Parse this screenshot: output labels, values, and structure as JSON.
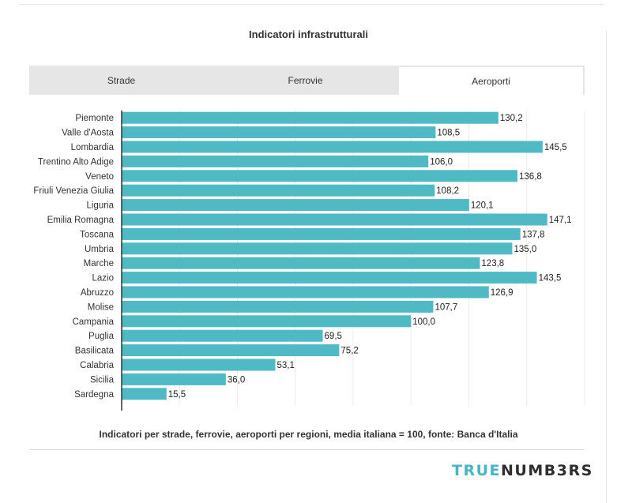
{
  "title": "Indicatori infrastrutturali",
  "tabs": [
    {
      "label": "Strade",
      "active": false
    },
    {
      "label": "Ferrovie",
      "active": false
    },
    {
      "label": "Aeroporti",
      "active": true
    }
  ],
  "chart_data": {
    "type": "bar",
    "orientation": "horizontal",
    "title": "Indicatori infrastrutturali",
    "categories": [
      "Piemonte",
      "Valle d'Aosta",
      "Lombardia",
      "Trentino Alto Adige",
      "Veneto",
      "Friuli Venezia Giulia",
      "Liguria",
      "Emilia Romagna",
      "Toscana",
      "Umbria",
      "Marche",
      "Lazio",
      "Abruzzo",
      "Molise",
      "Campania",
      "Puglia",
      "Basilicata",
      "Calabria",
      "Sicilia",
      "Sardegna"
    ],
    "values": [
      130.2,
      108.5,
      145.5,
      106.0,
      136.8,
      108.2,
      120.1,
      147.1,
      137.8,
      135.0,
      123.8,
      143.5,
      126.9,
      107.7,
      100.0,
      69.5,
      75.2,
      53.1,
      36.0,
      15.5
    ],
    "value_labels": [
      "130,2",
      "108,5",
      "145,5",
      "106,0",
      "136,8",
      "108,2",
      "120,1",
      "147,1",
      "137,8",
      "135,0",
      "123,8",
      "143,5",
      "126,9",
      "107,7",
      "100,0",
      "69,5",
      "75,2",
      "53,1",
      "36,0",
      "15,5"
    ],
    "xlim": [
      0,
      160
    ],
    "grid": true,
    "bar_color": "#4fbac4",
    "xlabel": "",
    "ylabel": ""
  },
  "caption": "Indicatori per strade, ferrovie, aeroporti per regioni, media italiana = 100, fonte: Banca d'Italia",
  "logo": {
    "part1": "TRUE",
    "part2": "NUMB3RS"
  },
  "colors": {
    "accent": "#4fbac4",
    "logo_teal": "#47b5c4",
    "tab_bg": "#e6e6e6"
  }
}
